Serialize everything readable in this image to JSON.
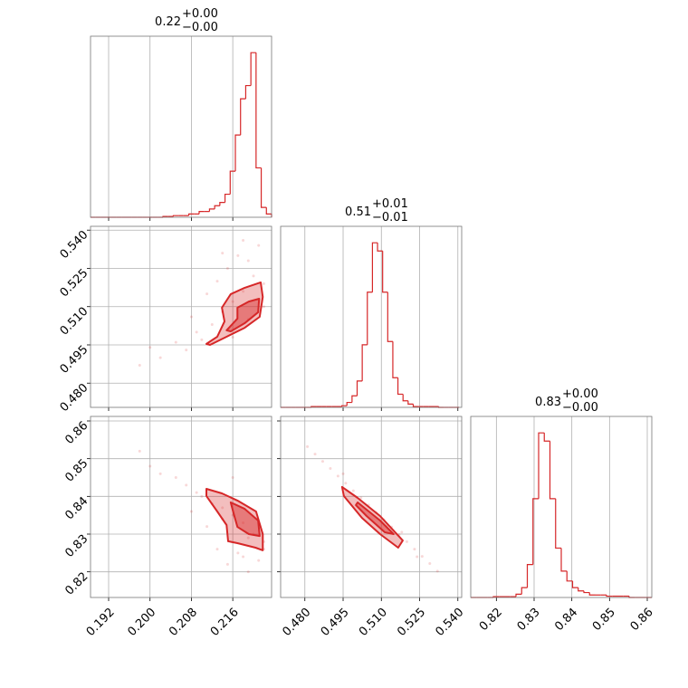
{
  "chart_data": {
    "type": "corner",
    "color": "#d62728",
    "hist_ylim": [
      0,
      1.1
    ],
    "parameters": [
      {
        "title": "0.22",
        "title_upper": "+0.00",
        "title_lower": "−0.00",
        "lim": [
          0.1885,
          0.2235
        ],
        "ticks": [
          0.192,
          {
            "value": 0.2,
            "label": "0.200"
          },
          0.208,
          0.216
        ],
        "bins": [
          0.1885,
          0.1895,
          0.1905,
          0.1915,
          0.1925,
          0.1935,
          0.1945,
          0.1955,
          0.1965,
          0.1975,
          0.1985,
          0.1995,
          0.2005,
          0.2015,
          0.2025,
          0.2035,
          0.2045,
          0.2055,
          0.2065,
          0.2075,
          0.2085,
          0.2095,
          0.2105,
          0.2115,
          0.2125,
          0.2135,
          0.2145,
          0.2155,
          0.2165,
          0.2175,
          0.2185,
          0.2195,
          0.2205,
          0.2215,
          0.2225,
          0.2235
        ],
        "values": [
          0,
          0,
          0,
          0,
          0,
          0,
          0,
          0,
          0,
          0,
          0,
          0,
          0,
          0,
          0.005,
          0.005,
          0.01,
          0.01,
          0.01,
          0.02,
          0.02,
          0.035,
          0.035,
          0.05,
          0.07,
          0.09,
          0.14,
          0.28,
          0.5,
          0.72,
          0.8,
          1.0,
          0.3,
          0.06,
          0.02
        ]
      },
      {
        "title": "0.51",
        "title_upper": "+0.01",
        "title_lower": "−0.01",
        "lim": [
          0.4705,
          0.5415
        ],
        "ticks": [
          {
            "value": 0.48,
            "label": "0.480"
          },
          0.495,
          {
            "value": 0.51,
            "label": "0.510"
          },
          0.525,
          {
            "value": 0.54,
            "label": "0.540"
          }
        ],
        "bins": [
          0.4705,
          0.4725,
          0.4745,
          0.4765,
          0.4785,
          0.4805,
          0.4825,
          0.4845,
          0.4865,
          0.4885,
          0.4905,
          0.4925,
          0.4945,
          0.4965,
          0.4985,
          0.5005,
          0.5025,
          0.5045,
          0.5065,
          0.5085,
          0.5105,
          0.5125,
          0.5145,
          0.5165,
          0.5185,
          0.5205,
          0.5225,
          0.5245,
          0.5265,
          0.5285,
          0.5305,
          0.5325,
          0.5345,
          0.5365,
          0.5385,
          0.5405
        ],
        "values": [
          0,
          0,
          0,
          0,
          0,
          0,
          0.005,
          0.005,
          0.005,
          0.005,
          0.005,
          0.005,
          0.01,
          0.03,
          0.07,
          0.16,
          0.38,
          0.7,
          1.0,
          0.95,
          0.7,
          0.4,
          0.18,
          0.08,
          0.04,
          0.02,
          0.005,
          0.005,
          0.005,
          0.005,
          0.005,
          0,
          0,
          0,
          0
        ]
      },
      {
        "title": "0.83",
        "title_upper": "+0.00",
        "title_lower": "−0.00",
        "lim": [
          0.8132,
          0.8612
        ],
        "ticks": [
          0.82,
          0.83,
          0.84,
          0.85,
          0.86
        ],
        "bins": [
          0.8132,
          0.8147,
          0.8162,
          0.8177,
          0.8192,
          0.8207,
          0.8222,
          0.8237,
          0.8252,
          0.8267,
          0.8282,
          0.8297,
          0.8312,
          0.8327,
          0.8342,
          0.8357,
          0.8372,
          0.8387,
          0.8402,
          0.8417,
          0.8432,
          0.8447,
          0.8462,
          0.8477,
          0.8492,
          0.8507,
          0.8522,
          0.8537,
          0.8552,
          0.8567,
          0.8582,
          0.8597,
          0.8612
        ],
        "values": [
          0,
          0,
          0,
          0,
          0.005,
          0.005,
          0.005,
          0.005,
          0.02,
          0.06,
          0.2,
          0.6,
          1.0,
          0.95,
          0.6,
          0.3,
          0.16,
          0.1,
          0.06,
          0.04,
          0.03,
          0.015,
          0.015,
          0.015,
          0.008,
          0.008,
          0.008,
          0.008,
          0,
          0,
          0,
          0
        ]
      }
    ],
    "pairs": [
      {
        "x": [
          0.198,
          0.2,
          0.202,
          0.205,
          0.207,
          0.209,
          0.21,
          0.212,
          0.213,
          0.214,
          0.215,
          0.216,
          0.217,
          0.218,
          0.219,
          0.22,
          0.221,
          0.222,
          0.211,
          0.216,
          0.219,
          0.222,
          0.214,
          0.208,
          0.218
        ],
        "y": [
          0.487,
          0.494,
          0.49,
          0.496,
          0.493,
          0.5,
          0.497,
          0.503,
          0.52,
          0.508,
          0.525,
          0.512,
          0.53,
          0.516,
          0.505,
          0.522,
          0.534,
          0.519,
          0.515,
          0.498,
          0.528,
          0.51,
          0.531,
          0.506,
          0.536
        ],
        "contours": [
          {
            "x": [
              0.2109,
              0.213,
              0.2144,
              0.2139,
              0.2156,
              0.2183,
              0.2214,
              0.2218,
              0.2212,
              0.2183,
              0.2148,
              0.2116
            ],
            "y": [
              0.4954,
              0.4982,
              0.5042,
              0.5096,
              0.5149,
              0.5174,
              0.5195,
              0.5138,
              0.506,
              0.5017,
              0.4982,
              0.495
            ]
          },
          {
            "x": [
              0.2148,
              0.2169,
              0.2169,
              0.2191,
              0.2211,
              0.2209,
              0.2183,
              0.2156
            ],
            "y": [
              0.5007,
              0.5053,
              0.5096,
              0.512,
              0.5131,
              0.5078,
              0.5035,
              0.5003
            ]
          }
        ]
      },
      {
        "x": [
          0.198,
          0.2,
          0.202,
          0.205,
          0.207,
          0.209,
          0.21,
          0.212,
          0.213,
          0.214,
          0.215,
          0.216,
          0.217,
          0.218,
          0.219,
          0.22,
          0.221,
          0.222,
          0.211,
          0.216,
          0.219,
          0.222,
          0.214,
          0.208,
          0.218
        ],
        "y": [
          0.852,
          0.848,
          0.846,
          0.845,
          0.843,
          0.841,
          0.84,
          0.838,
          0.826,
          0.837,
          0.822,
          0.835,
          0.825,
          0.833,
          0.829,
          0.83,
          0.823,
          0.828,
          0.832,
          0.845,
          0.82,
          0.826,
          0.834,
          0.836,
          0.824
        ],
        "contours": [
          {
            "x": [
              0.2109,
              0.2139,
              0.2169,
              0.2205,
              0.2218,
              0.2218,
              0.2204,
              0.2169,
              0.2151,
              0.2148,
              0.213,
              0.2109
            ],
            "y": [
              0.842,
              0.8408,
              0.8389,
              0.836,
              0.83,
              0.8257,
              0.8264,
              0.8276,
              0.8281,
              0.8324,
              0.836,
              0.8401
            ]
          },
          {
            "x": [
              0.2156,
              0.2183,
              0.2209,
              0.2212,
              0.2191,
              0.2169,
              0.2162
            ],
            "y": [
              0.8384,
              0.8367,
              0.8336,
              0.8295,
              0.83,
              0.8319,
              0.8353
            ]
          }
        ]
      },
      {
        "x": [
          0.481,
          0.484,
          0.487,
          0.49,
          0.493,
          0.496,
          0.499,
          0.502,
          0.505,
          0.508,
          0.511,
          0.514,
          0.517,
          0.52,
          0.523,
          0.526,
          0.529,
          0.532,
          0.495,
          0.512,
          0.518,
          0.524
        ],
        "y": [
          0.8532,
          0.8512,
          0.8493,
          0.8474,
          0.8454,
          0.8435,
          0.8415,
          0.8396,
          0.8377,
          0.8357,
          0.8338,
          0.8319,
          0.8299,
          0.828,
          0.826,
          0.8241,
          0.8222,
          0.8202,
          0.846,
          0.832,
          0.8305,
          0.824
        ],
        "contours": [
          {
            "x": [
              0.4946,
              0.5007,
              0.5095,
              0.5184,
              0.5166,
              0.5095,
              0.5024,
              0.4953
            ],
            "y": [
              0.8425,
              0.8396,
              0.8348,
              0.8283,
              0.8264,
              0.83,
              0.8343,
              0.8401
            ]
          },
          {
            "x": [
              0.5007,
              0.5095,
              0.5148,
              0.5113,
              0.5042,
              0.5
            ],
            "y": [
              0.8384,
              0.8336,
              0.83,
              0.8305,
              0.8348,
              0.8377
            ]
          }
        ]
      }
    ]
  }
}
